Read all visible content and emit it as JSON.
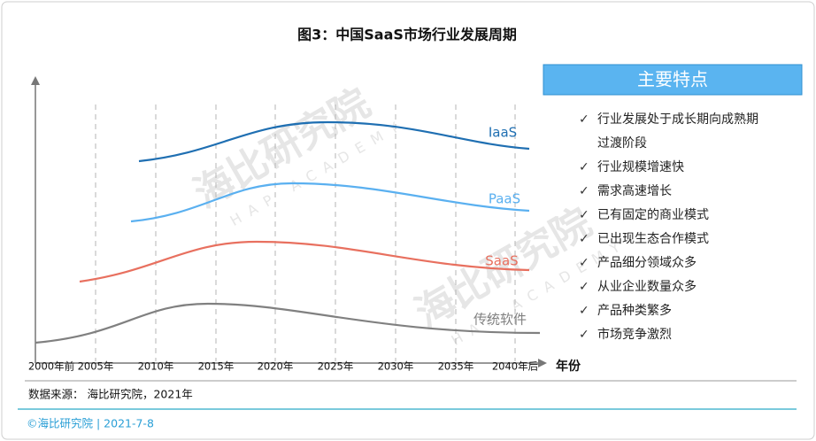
{
  "title": "图3：中国SaaS市场行业发展周期",
  "x_axis": {
    "labels": [
      "2000年前",
      "2005年",
      "2010年",
      "2015年",
      "2020年",
      "2025年",
      "2030年",
      "2035年",
      "2040年后"
    ],
    "title": "年份"
  },
  "curves": [
    "IaaS",
    "PaaS",
    "SaaS",
    "传统软件"
  ],
  "panel": {
    "title": "主要特点",
    "items": [
      "行业发展处于成长期向成熟期过渡阶段",
      "行业规模增速快",
      "需求高速增长",
      "已有固定的商业模式",
      "已出现生态合作模式",
      "产品细分领域众多",
      "从业企业数量众多",
      "产品种类繁多",
      "市场竞争激烈"
    ]
  },
  "watermark": {
    "name": "海比研究院",
    "sub": "HAP ACADEMY"
  },
  "source": "数据来源： 海比研究院，2021年",
  "footer": "©海比研究院 | 2021-7-8"
}
